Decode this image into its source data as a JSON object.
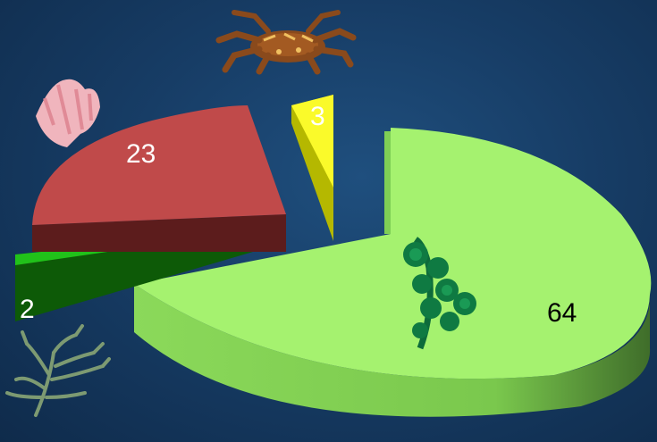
{
  "chart_data": {
    "type": "pie",
    "style": "3d-exploded",
    "slices": [
      {
        "label": "64",
        "value": 64,
        "top_color": "#a5f26f",
        "side_color": "#79c84e",
        "label_color": "#000000",
        "icon": "green-seaweed-icon"
      },
      {
        "label": "2",
        "value": 2,
        "top_color": "#21c21a",
        "side_color": "#0d5a07",
        "label_color": "#ffffff",
        "icon": "branching-seaweed-icon"
      },
      {
        "label": "23",
        "value": 23,
        "top_color": "#c04a4a",
        "side_color": "#5c1c1c",
        "label_color": "#ffffff",
        "icon": "pink-coral-icon"
      },
      {
        "label": "3",
        "value": 3,
        "top_color": "#fafa2a",
        "side_color": "#b5b800",
        "label_color": "#ffffff",
        "icon": "crab-icon"
      }
    ]
  },
  "colors": {
    "background": "#173d66"
  }
}
